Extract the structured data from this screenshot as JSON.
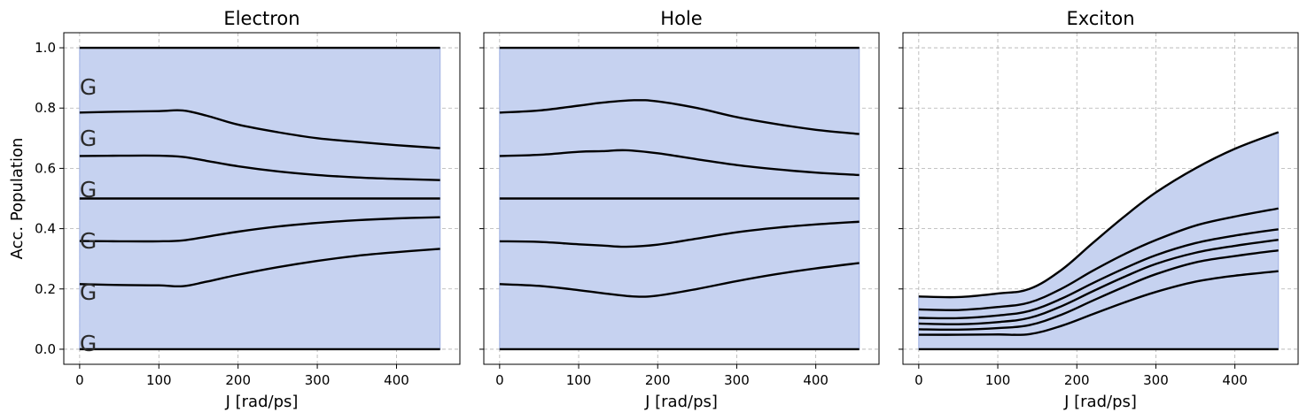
{
  "chart_data": [
    {
      "type": "area",
      "title": "Electron",
      "xlabel": "J [rad/ps]",
      "ylabel": "Acc. Population",
      "xlim": [
        -20,
        480
      ],
      "ylim": [
        -0.05,
        1.05
      ],
      "xticks": [
        0,
        100,
        200,
        300,
        400
      ],
      "yticks": [
        0.0,
        0.2,
        0.4,
        0.6,
        0.8,
        1.0
      ],
      "ytick_labels": [
        "0.0",
        "0.2",
        "0.4",
        "0.6",
        "0.8",
        "1.0"
      ],
      "show_ytick_labels": true,
      "grid": true,
      "fill_color": "#c6d2f0",
      "fill_edge_color": "#a8b8e6",
      "line_color": "#000000",
      "annotations": [
        {
          "text": "G",
          "x": 0,
          "y": 0.0
        },
        {
          "text": "G",
          "x": 0,
          "y": 0.17
        },
        {
          "text": "G",
          "x": 0,
          "y": 0.34
        },
        {
          "text": "G",
          "x": 0,
          "y": 0.51
        },
        {
          "text": "G",
          "x": 0,
          "y": 0.68
        },
        {
          "text": "G",
          "x": 0,
          "y": 0.85
        }
      ],
      "series": [
        {
          "x": [
            0,
            455
          ],
          "y": [
            1.0,
            1.0
          ]
        },
        {
          "x": [
            0,
            50,
            100,
            130,
            160,
            200,
            250,
            300,
            350,
            400,
            455
          ],
          "y": [
            0.785,
            0.788,
            0.79,
            0.792,
            0.775,
            0.745,
            0.72,
            0.7,
            0.688,
            0.677,
            0.667
          ]
        },
        {
          "x": [
            0,
            50,
            100,
            130,
            160,
            200,
            250,
            300,
            350,
            400,
            455
          ],
          "y": [
            0.641,
            0.642,
            0.642,
            0.638,
            0.625,
            0.607,
            0.59,
            0.578,
            0.57,
            0.565,
            0.561
          ]
        },
        {
          "x": [
            0,
            455
          ],
          "y": [
            0.5,
            0.5
          ]
        },
        {
          "x": [
            0,
            50,
            100,
            130,
            160,
            200,
            250,
            300,
            350,
            400,
            455
          ],
          "y": [
            0.359,
            0.358,
            0.358,
            0.361,
            0.373,
            0.39,
            0.407,
            0.419,
            0.428,
            0.434,
            0.438
          ]
        },
        {
          "x": [
            0,
            50,
            100,
            130,
            160,
            200,
            250,
            300,
            350,
            400,
            455
          ],
          "y": [
            0.216,
            0.213,
            0.212,
            0.209,
            0.224,
            0.247,
            0.272,
            0.293,
            0.31,
            0.322,
            0.333
          ]
        },
        {
          "x": [
            0,
            455
          ],
          "y": [
            0.0,
            0.0
          ]
        }
      ]
    },
    {
      "type": "area",
      "title": "Hole",
      "xlabel": "J [rad/ps]",
      "ylabel": "",
      "xlim": [
        -20,
        480
      ],
      "ylim": [
        -0.05,
        1.05
      ],
      "xticks": [
        0,
        100,
        200,
        300,
        400
      ],
      "yticks": [
        0.0,
        0.2,
        0.4,
        0.6,
        0.8,
        1.0
      ],
      "ytick_labels": [
        "0.0",
        "0.2",
        "0.4",
        "0.6",
        "0.8",
        "1.0"
      ],
      "show_ytick_labels": false,
      "grid": true,
      "fill_color": "#c6d2f0",
      "fill_edge_color": "#a8b8e6",
      "line_color": "#000000",
      "annotations": [],
      "series": [
        {
          "x": [
            0,
            455
          ],
          "y": [
            1.0,
            1.0
          ]
        },
        {
          "x": [
            0,
            50,
            100,
            130,
            170,
            200,
            250,
            300,
            350,
            400,
            455
          ],
          "y": [
            0.785,
            0.792,
            0.808,
            0.818,
            0.826,
            0.822,
            0.8,
            0.77,
            0.747,
            0.728,
            0.714
          ]
        },
        {
          "x": [
            0,
            50,
            100,
            130,
            160,
            200,
            250,
            300,
            350,
            400,
            455
          ],
          "y": [
            0.641,
            0.645,
            0.655,
            0.657,
            0.66,
            0.65,
            0.63,
            0.611,
            0.597,
            0.586,
            0.578
          ]
        },
        {
          "x": [
            0,
            455
          ],
          "y": [
            0.5,
            0.5
          ]
        },
        {
          "x": [
            0,
            50,
            100,
            130,
            160,
            200,
            250,
            300,
            350,
            400,
            455
          ],
          "y": [
            0.358,
            0.356,
            0.348,
            0.344,
            0.34,
            0.347,
            0.367,
            0.388,
            0.403,
            0.414,
            0.423
          ]
        },
        {
          "x": [
            0,
            50,
            100,
            130,
            170,
            200,
            250,
            300,
            350,
            400,
            455
          ],
          "y": [
            0.216,
            0.21,
            0.196,
            0.186,
            0.175,
            0.178,
            0.2,
            0.226,
            0.249,
            0.268,
            0.286
          ]
        },
        {
          "x": [
            0,
            455
          ],
          "y": [
            0.0,
            0.0
          ]
        }
      ]
    },
    {
      "type": "area",
      "title": "Exciton",
      "xlabel": "J [rad/ps]",
      "ylabel": "",
      "xlim": [
        -20,
        480
      ],
      "ylim": [
        -0.05,
        1.05
      ],
      "xticks": [
        0,
        100,
        200,
        300,
        400
      ],
      "yticks": [
        0.0,
        0.2,
        0.4,
        0.6,
        0.8,
        1.0
      ],
      "ytick_labels": [
        "0.0",
        "0.2",
        "0.4",
        "0.6",
        "0.8",
        "1.0"
      ],
      "show_ytick_labels": false,
      "grid": true,
      "fill_color": "#c6d2f0",
      "fill_edge_color": "#a8b8e6",
      "line_color": "#000000",
      "annotations": [],
      "series": [
        {
          "x": [
            0,
            50,
            100,
            140,
            180,
            220,
            260,
            300,
            350,
            400,
            455
          ],
          "y": [
            0.175,
            0.173,
            0.185,
            0.2,
            0.262,
            0.352,
            0.44,
            0.52,
            0.6,
            0.665,
            0.72
          ]
        },
        {
          "x": [
            0,
            50,
            100,
            140,
            180,
            220,
            260,
            300,
            350,
            400,
            455
          ],
          "y": [
            0.132,
            0.13,
            0.14,
            0.155,
            0.2,
            0.26,
            0.315,
            0.362,
            0.41,
            0.44,
            0.467
          ]
        },
        {
          "x": [
            0,
            50,
            100,
            140,
            180,
            220,
            260,
            300,
            350,
            400,
            455
          ],
          "y": [
            0.104,
            0.103,
            0.112,
            0.127,
            0.167,
            0.219,
            0.268,
            0.312,
            0.352,
            0.377,
            0.398
          ]
        },
        {
          "x": [
            0,
            50,
            100,
            140,
            180,
            220,
            260,
            300,
            350,
            400,
            455
          ],
          "y": [
            0.085,
            0.083,
            0.09,
            0.104,
            0.142,
            0.192,
            0.24,
            0.283,
            0.32,
            0.343,
            0.363
          ]
        },
        {
          "x": [
            0,
            50,
            100,
            140,
            180,
            220,
            260,
            300,
            350,
            400,
            455
          ],
          "y": [
            0.066,
            0.065,
            0.07,
            0.08,
            0.114,
            0.161,
            0.207,
            0.249,
            0.288,
            0.309,
            0.328
          ]
        },
        {
          "x": [
            0,
            50,
            100,
            140,
            180,
            220,
            260,
            300,
            350,
            400,
            455
          ],
          "y": [
            0.048,
            0.048,
            0.049,
            0.05,
            0.077,
            0.116,
            0.155,
            0.19,
            0.224,
            0.244,
            0.259
          ]
        },
        {
          "x": [
            0,
            455
          ],
          "y": [
            0.0,
            0.0
          ]
        }
      ]
    }
  ]
}
